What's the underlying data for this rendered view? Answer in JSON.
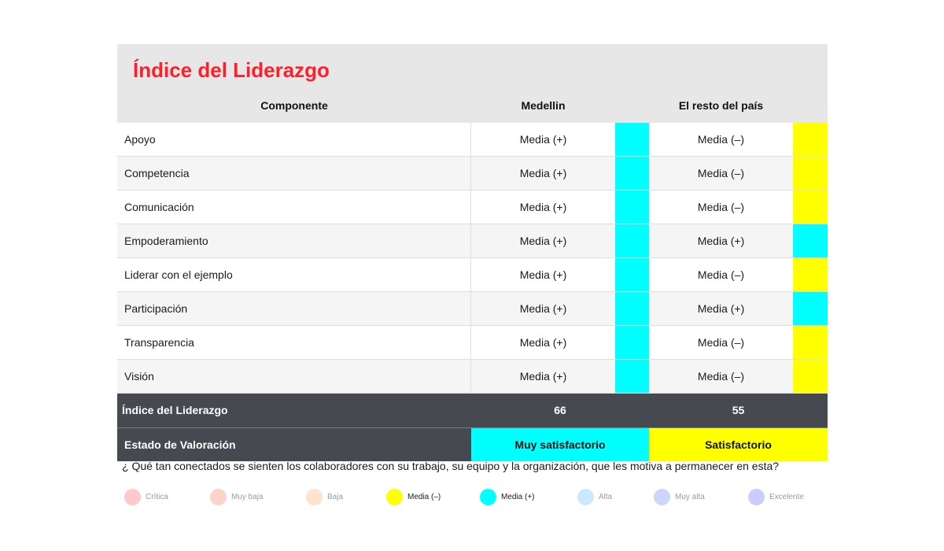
{
  "chart_data": {
    "type": "table",
    "title": "Índice del Liderazgo",
    "columns": [
      "Componente",
      "Medellin",
      "El resto del país"
    ],
    "rows": [
      {
        "name": "Apoyo",
        "medellin": "Media (+)",
        "medellin_color": "#00ffff",
        "pais": "Media (–)",
        "pais_color": "#ffff00"
      },
      {
        "name": "Competencia",
        "medellin": "Media (+)",
        "medellin_color": "#00ffff",
        "pais": "Media (–)",
        "pais_color": "#ffff00"
      },
      {
        "name": "Comunicación",
        "medellin": "Media (+)",
        "medellin_color": "#00ffff",
        "pais": "Media (–)",
        "pais_color": "#ffff00"
      },
      {
        "name": "Empoderamiento",
        "medellin": "Media (+)",
        "medellin_color": "#00ffff",
        "pais": "Media (+)",
        "pais_color": "#00ffff"
      },
      {
        "name": "Liderar con el ejemplo",
        "medellin": "Media (+)",
        "medellin_color": "#00ffff",
        "pais": "Media (–)",
        "pais_color": "#ffff00"
      },
      {
        "name": "Participación",
        "medellin": "Media (+)",
        "medellin_color": "#00ffff",
        "pais": "Media (+)",
        "pais_color": "#00ffff"
      },
      {
        "name": "Transparencia",
        "medellin": "Media (+)",
        "medellin_color": "#00ffff",
        "pais": "Media (–)",
        "pais_color": "#ffff00"
      },
      {
        "name": "Visión",
        "medellin": "Media (+)",
        "medellin_color": "#00ffff",
        "pais": "Media (–)",
        "pais_color": "#ffff00"
      }
    ],
    "index": {
      "label": "Índice del Liderazgo",
      "medellin": "66",
      "pais": "55"
    },
    "status": {
      "label": "Estado de Valoración",
      "medellin": "Muy satisfactorio",
      "medellin_color": "#00ffff",
      "pais": "Satisfactorio",
      "pais_color": "#ffff00"
    },
    "question": "¿ Qué tan conectados se sienten los colaboradores con su trabajo, su equipo y la organización, que les motiva a permanecer en esta?",
    "legend": [
      {
        "label": "Crítica",
        "color": "#ffc9cc",
        "text_color": "#9a9a9a"
      },
      {
        "label": "Muy baja",
        "color": "#ffd3cc",
        "text_color": "#9a9a9a"
      },
      {
        "label": "Baja",
        "color": "#ffe3cc",
        "text_color": "#9a9a9a"
      },
      {
        "label": "Media (–)",
        "color": "#ffff00",
        "text_color": "#1a1a1a"
      },
      {
        "label": "Media (+)",
        "color": "#00ffff",
        "text_color": "#1a1a1a"
      },
      {
        "label": "Alta",
        "color": "#cce8ff",
        "text_color": "#9a9a9a"
      },
      {
        "label": "Muy alta",
        "color": "#ccd6ff",
        "text_color": "#9a9a9a"
      },
      {
        "label": "Excelente",
        "color": "#ccccff",
        "text_color": "#9a9a9a"
      }
    ]
  }
}
